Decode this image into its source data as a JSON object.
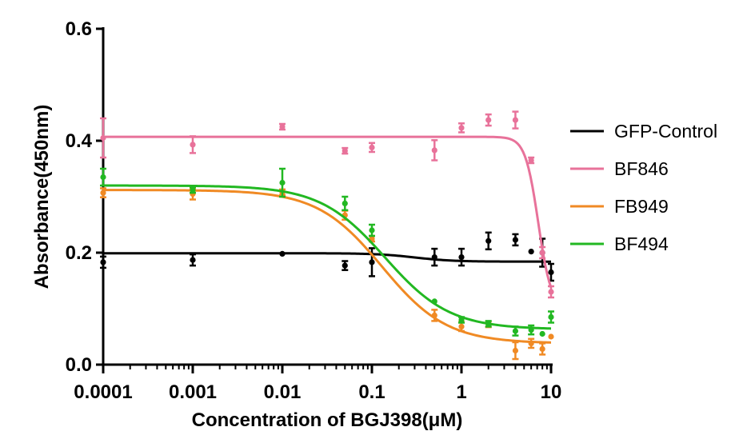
{
  "chart_data": {
    "type": "line",
    "title": "",
    "xlabel": "Concentration of BGJ398(μM)",
    "ylabel": "Absorbance(450nm)",
    "xscale": "log",
    "xlim": [
      0.0001,
      10
    ],
    "ylim": [
      0,
      0.6
    ],
    "x_ticks": [
      "0.0001",
      "0.001",
      "0.01",
      "0.1",
      "1",
      "10"
    ],
    "y_ticks": [
      "0.0",
      "0.2",
      "0.4",
      "0.6"
    ],
    "grid": false,
    "legend_position": "right",
    "x": [
      0.0001,
      0.001,
      0.01,
      0.05,
      0.1,
      0.5,
      1,
      2,
      4,
      6,
      8,
      10
    ],
    "series": [
      {
        "name": "GFP-Control",
        "color": "#000000",
        "values": [
          0.183,
          0.187,
          0.198,
          0.177,
          0.183,
          0.192,
          0.192,
          0.221,
          0.223,
          0.202,
          0.2,
          0.165
        ],
        "errors": [
          0.01,
          0.01,
          0.0,
          0.008,
          0.025,
          0.015,
          0.015,
          0.015,
          0.01,
          0.0,
          0.025,
          0.015
        ],
        "fit": {
          "top": 0.199,
          "bottom": 0.184,
          "ec50": 0.3,
          "hill": 2
        }
      },
      {
        "name": "BF846",
        "color": "#e8729a",
        "values": [
          0.405,
          0.393,
          0.425,
          0.382,
          0.388,
          0.383,
          0.423,
          0.437,
          0.437,
          0.365,
          0.2,
          0.13
        ],
        "errors": [
          0.035,
          0.015,
          0.005,
          0.005,
          0.008,
          0.018,
          0.008,
          0.01,
          0.015,
          0.005,
          0.01,
          0.01
        ],
        "fit": {
          "top": 0.407,
          "bottom": 0.1,
          "ec50": 7.2,
          "hill": 6
        }
      },
      {
        "name": "FB949",
        "color": "#f08a24",
        "values": [
          0.307,
          0.305,
          0.308,
          0.267,
          0.225,
          0.088,
          0.068,
          0.072,
          0.025,
          0.038,
          0.028,
          0.05
        ],
        "errors": [
          0.008,
          0.01,
          0.005,
          0.008,
          0.005,
          0.01,
          0.008,
          0.005,
          0.015,
          0.008,
          0.01,
          0.0
        ],
        "fit": {
          "top": 0.312,
          "bottom": 0.038,
          "ec50": 0.13,
          "hill": 1.2
        }
      },
      {
        "name": "BF494",
        "color": "#22b822",
        "values": [
          0.335,
          0.312,
          0.325,
          0.288,
          0.24,
          0.113,
          0.08,
          0.073,
          0.06,
          0.062,
          0.055,
          0.085
        ],
        "errors": [
          0.015,
          0.005,
          0.025,
          0.012,
          0.01,
          0.0,
          0.005,
          0.005,
          0.008,
          0.008,
          0.0,
          0.01
        ],
        "fit": {
          "top": 0.32,
          "bottom": 0.063,
          "ec50": 0.14,
          "hill": 1.2
        }
      }
    ]
  }
}
